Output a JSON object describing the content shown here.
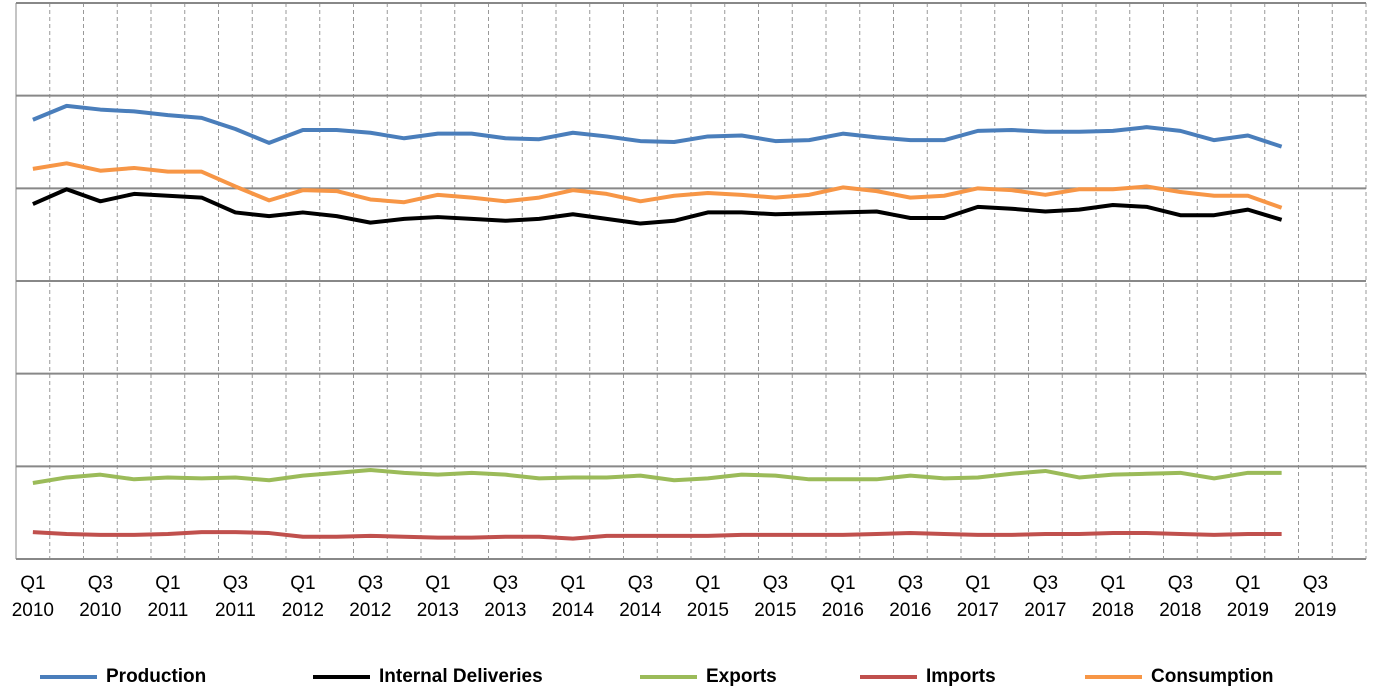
{
  "chart_data": {
    "type": "line",
    "categories": [
      "Q1 2010",
      null,
      "Q3 2010",
      null,
      "Q1 2011",
      null,
      "Q3 2011",
      null,
      "Q1 2012",
      null,
      "Q3 2012",
      null,
      "Q1 2013",
      null,
      "Q3 2013",
      null,
      "Q1 2014",
      null,
      "Q3 2014",
      null,
      "Q1 2015",
      null,
      "Q3 2015",
      null,
      "Q1 2016",
      null,
      "Q3 2016",
      null,
      "Q1 2017",
      null,
      "Q3 2017",
      null,
      "Q1 2018",
      null,
      "Q3 2018",
      null,
      "Q1 2019",
      null,
      "Q3 2019",
      null
    ],
    "series": [
      {
        "name": "Production",
        "color": "#4a7ebb",
        "values": [
          474,
          489,
          485,
          483,
          479,
          476,
          464,
          449,
          463,
          463,
          460,
          454,
          459,
          459,
          454,
          453,
          460,
          456,
          451,
          450,
          456,
          457,
          451,
          452,
          459,
          455,
          452,
          452,
          462,
          463,
          461,
          461,
          462,
          466,
          462,
          452,
          457,
          445,
          null,
          null
        ]
      },
      {
        "name": "Internal Deliveries",
        "color": "#000000",
        "values": [
          383,
          399,
          386,
          394,
          392,
          390,
          374,
          370,
          374,
          370,
          363,
          367,
          369,
          367,
          365,
          367,
          372,
          367,
          362,
          365,
          374,
          374,
          372,
          373,
          374,
          375,
          368,
          368,
          380,
          378,
          375,
          377,
          382,
          380,
          371,
          371,
          377,
          366,
          null,
          null
        ]
      },
      {
        "name": "Exports",
        "color": "#9bbb59",
        "values": [
          82,
          88,
          91,
          86,
          88,
          87,
          88,
          85,
          90,
          93,
          96,
          93,
          91,
          93,
          91,
          87,
          88,
          88,
          90,
          85,
          87,
          91,
          90,
          86,
          86,
          86,
          90,
          87,
          88,
          92,
          95,
          88,
          91,
          92,
          93,
          87,
          93,
          93,
          null,
          null
        ]
      },
      {
        "name": "Imports",
        "color": "#c0504d",
        "values": [
          29,
          27,
          26,
          26,
          27,
          29,
          29,
          28,
          24,
          24,
          25,
          24,
          23,
          23,
          24,
          24,
          22,
          25,
          25,
          25,
          25,
          26,
          26,
          26,
          26,
          27,
          28,
          27,
          26,
          26,
          27,
          27,
          28,
          28,
          27,
          26,
          27,
          27,
          null,
          null
        ]
      },
      {
        "name": "Consumption",
        "color": "#f79646",
        "values": [
          421,
          427,
          419,
          422,
          418,
          418,
          402,
          387,
          398,
          397,
          388,
          385,
          393,
          390,
          386,
          390,
          398,
          394,
          386,
          392,
          395,
          393,
          390,
          393,
          401,
          397,
          390,
          392,
          400,
          398,
          393,
          399,
          399,
          402,
          396,
          392,
          392,
          379,
          null,
          null
        ]
      }
    ],
    "ylim": [
      0,
      600
    ],
    "yticks": [
      0,
      100,
      200,
      300,
      400,
      500,
      600
    ],
    "grid": true,
    "legend": "bottom"
  }
}
